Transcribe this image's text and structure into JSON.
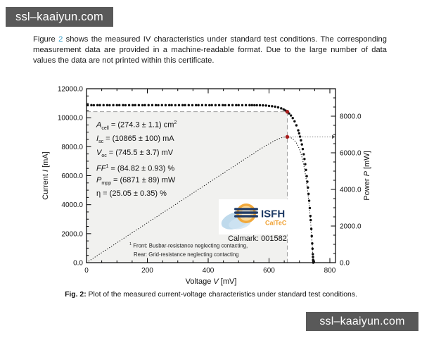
{
  "watermark": {
    "text": "ssl–kaaiyun.com"
  },
  "paragraph": {
    "prefix": "Figure ",
    "link": "2",
    "body": " shows the measured IV characteristics under standard test conditions. The corresponding measurement data are provided in a machine-readable format. Due to the large number of data values the data are not printed within this certificate."
  },
  "colors": {
    "link": "#3aa0c9",
    "watermark_bg": "#595959",
    "mpp_red": "#a81d1d",
    "guide_gray": "#9c9c9c",
    "shade": "#f1f1ef",
    "logo_navy": "#1f3b66",
    "logo_orange": "#f0a030"
  },
  "chart_data": {
    "type": "line",
    "title": "",
    "xlabel_parts": [
      "Voltage ",
      "V",
      " [mV]"
    ],
    "ylabel_left_parts": [
      "Current ",
      "I",
      " [mA]"
    ],
    "ylabel_right_parts": [
      "Power ",
      "P",
      " [mW]"
    ],
    "xlim": [
      0,
      818
    ],
    "ylim_left": [
      0,
      12000
    ],
    "ylim_right": [
      0,
      9500
    ],
    "x_major_ticks": [
      0,
      200,
      400,
      600,
      800
    ],
    "x_minor_step": 50,
    "y_left_major_ticks": [
      0,
      2000,
      4000,
      6000,
      8000,
      10000,
      12000
    ],
    "y_left_minor_step": 500,
    "y_right_major_ticks": [
      0,
      2000,
      4000,
      6000,
      8000
    ],
    "y_right_minor_step": 500,
    "grid": false,
    "legend": "none",
    "mpp": {
      "V": 660,
      "I": 10412,
      "P": 6871
    },
    "series": [
      {
        "name": "IV curve (measured points)",
        "style": "dots",
        "points": [
          [
            4,
            10865
          ],
          [
            16,
            10867
          ],
          [
            24,
            10862
          ],
          [
            36,
            10866
          ],
          [
            44,
            10864
          ],
          [
            56,
            10865
          ],
          [
            68,
            10867
          ],
          [
            76,
            10862
          ],
          [
            88,
            10866
          ],
          [
            100,
            10864
          ],
          [
            108,
            10865
          ],
          [
            120,
            10867
          ],
          [
            128,
            10862
          ],
          [
            140,
            10866
          ],
          [
            152,
            10864
          ],
          [
            160,
            10865
          ],
          [
            172,
            10867
          ],
          [
            184,
            10862
          ],
          [
            192,
            10866
          ],
          [
            204,
            10864
          ],
          [
            216,
            10865
          ],
          [
            228,
            10867
          ],
          [
            236,
            10862
          ],
          [
            248,
            10866
          ],
          [
            260,
            10864
          ],
          [
            272,
            10865
          ],
          [
            280,
            10867
          ],
          [
            292,
            10862
          ],
          [
            304,
            10866
          ],
          [
            316,
            10864
          ],
          [
            324,
            10865
          ],
          [
            336,
            10867
          ],
          [
            348,
            10862
          ],
          [
            360,
            10866
          ],
          [
            368,
            10864
          ],
          [
            380,
            10865
          ],
          [
            392,
            10867
          ],
          [
            404,
            10862
          ],
          [
            412,
            10866
          ],
          [
            424,
            10864
          ],
          [
            436,
            10865
          ],
          [
            448,
            10867
          ],
          [
            456,
            10862
          ],
          [
            468,
            10866
          ],
          [
            480,
            10864
          ],
          [
            492,
            10865
          ],
          [
            500,
            10867
          ],
          [
            512,
            10862
          ],
          [
            524,
            10866
          ],
          [
            536,
            10864
          ],
          [
            544,
            10865
          ],
          [
            552,
            10863
          ],
          [
            560,
            10862
          ],
          [
            570,
            10858
          ],
          [
            580,
            10852
          ],
          [
            590,
            10843
          ],
          [
            600,
            10815
          ],
          [
            610,
            10793
          ],
          [
            620,
            10761
          ],
          [
            630,
            10714
          ],
          [
            640,
            10647
          ],
          [
            648,
            10572
          ],
          [
            654,
            10499
          ],
          [
            660,
            10412
          ],
          [
            666,
            10292
          ],
          [
            672,
            10151
          ],
          [
            678,
            9973
          ],
          [
            684,
            9751
          ],
          [
            690,
            9474
          ],
          [
            696,
            9129
          ],
          [
            699,
            8923
          ],
          [
            702,
            8695
          ],
          [
            705,
            8441
          ],
          [
            708,
            8156
          ],
          [
            711,
            7838
          ],
          [
            714,
            7481
          ],
          [
            716.5,
            7152
          ],
          [
            719,
            6791
          ],
          [
            721.5,
            6400
          ],
          [
            724,
            5965
          ],
          [
            726,
            5587
          ],
          [
            728,
            5182
          ],
          [
            730,
            4745
          ],
          [
            732,
            4274
          ],
          [
            734,
            3768
          ],
          [
            736,
            3224
          ],
          [
            737,
            2936
          ],
          [
            739,
            2327
          ],
          [
            740.5,
            1836
          ],
          [
            742,
            1324
          ],
          [
            743,
            960
          ],
          [
            744,
            588
          ],
          [
            744.5,
            395
          ],
          [
            745,
            199
          ],
          [
            745.2,
            120
          ],
          [
            745.5,
            0
          ]
        ]
      },
      {
        "name": "Power curve P = V·I",
        "style": "dotted-line",
        "derived_from": "IV curve"
      }
    ],
    "annotations": {
      "cell_parameters": [
        {
          "symbol": "A",
          "sub": "cell",
          "sup": "",
          "rest": "= (274.3 ± 1.1) cm",
          "rest_sup": "2",
          "italic": true
        },
        {
          "symbol": "I",
          "sub": "sc",
          "sup": "",
          "rest": "= (10865 ± 100) mA",
          "rest_sup": "",
          "italic": true
        },
        {
          "symbol": "V",
          "sub": "oc",
          "sup": "",
          "rest": "= (745.5 ± 3.7) mV",
          "rest_sup": "",
          "italic": true
        },
        {
          "symbol": "FF",
          "sub": "",
          "sup": "1",
          "rest": "= (84.82 ± 0.93) %",
          "rest_sup": "",
          "italic": true
        },
        {
          "symbol": "P",
          "sub": "mpp",
          "sup": "",
          "rest": "= (6871 ± 89) mW",
          "rest_sup": "",
          "italic": true
        },
        {
          "symbol": "η",
          "sub": "",
          "sup": "",
          "rest": "= (25.05 ± 0.35) %",
          "rest_sup": "",
          "italic": false
        }
      ]
    }
  },
  "logo": {
    "org": "ISFH",
    "dept": "CalTeC"
  },
  "calmark": {
    "text": "Calmark: 001582"
  },
  "footnote": {
    "marker": "1",
    "line1": " Front: Busbar-resistance neglecting contacting,",
    "line2": "Rear: Grid-resistance neglecting contacting"
  },
  "caption": {
    "label": "Fig. 2:",
    "text": " Plot of the measured current-voltage characteristics under standard test conditions."
  }
}
